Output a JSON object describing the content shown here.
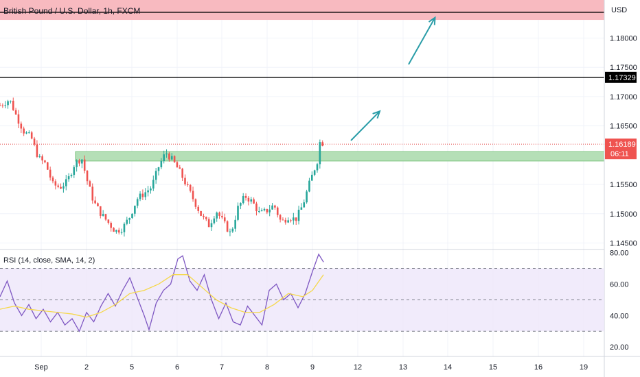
{
  "chart_data": {
    "type": "candlestick",
    "title": "British Pound / U.S. Dollar, 1h, FXCM",
    "currency": "USD",
    "y_ticks": [
      "1.18000",
      "1.17500",
      "1.17000",
      "1.16500",
      "1.15500",
      "1.15000",
      "1.14500"
    ],
    "ylim": [
      1.144,
      1.1865
    ],
    "x_ticks": [
      "Sep",
      "2",
      "5",
      "6",
      "7",
      "8",
      "9",
      "12",
      "13",
      "14",
      "15",
      "16",
      "19"
    ],
    "resistance_level": {
      "label": "1.17329",
      "value": 1.17329
    },
    "last_price": {
      "label": "1.16189",
      "value": 1.16189,
      "countdown": "06:11"
    },
    "price_points": [
      [
        0,
        1.1685
      ],
      [
        2,
        1.1695
      ],
      [
        3.5,
        1.1665
      ],
      [
        5,
        1.164
      ],
      [
        6.5,
        1.163
      ],
      [
        8,
        1.1595
      ],
      [
        9.5,
        1.1585
      ],
      [
        11,
        1.155
      ],
      [
        12.5,
        1.1545
      ],
      [
        14,
        1.1555
      ],
      [
        15.5,
        1.1585
      ],
      [
        17,
        1.1595
      ],
      [
        18,
        1.156
      ],
      [
        19.5,
        1.152
      ],
      [
        21,
        1.15
      ],
      [
        22.5,
        1.1485
      ],
      [
        24,
        1.147
      ],
      [
        25.5,
        1.1475
      ],
      [
        27,
        1.1495
      ],
      [
        28.5,
        1.1525
      ],
      [
        30,
        1.1535
      ],
      [
        31.5,
        1.1545
      ],
      [
        33,
        1.158
      ],
      [
        34.5,
        1.1605
      ],
      [
        36,
        1.159
      ],
      [
        37.5,
        1.157
      ],
      [
        39,
        1.1545
      ],
      [
        40.5,
        1.152
      ],
      [
        42,
        1.1495
      ],
      [
        43.5,
        1.148
      ],
      [
        45,
        1.1505
      ],
      [
        46.5,
        1.1485
      ],
      [
        48,
        1.1465
      ],
      [
        49.5,
        1.151
      ],
      [
        51,
        1.153
      ],
      [
        52.5,
        1.152
      ],
      [
        54,
        1.15
      ],
      [
        55.5,
        1.1505
      ],
      [
        57,
        1.1515
      ],
      [
        58.5,
        1.1485
      ],
      [
        60,
        1.1495
      ],
      [
        61.5,
        1.149
      ],
      [
        63,
        1.1515
      ],
      [
        64.5,
        1.1555
      ],
      [
        66,
        1.159
      ],
      [
        66.6,
        1.1625
      ],
      [
        67.3,
        1.1619
      ]
    ],
    "zones": [
      {
        "name": "resistance-zone",
        "from": 1.1831,
        "to": 1.1865,
        "color": "#f8bac0"
      },
      {
        "name": "support-zone",
        "from": 1.159,
        "to": 1.1606,
        "color": "#b5dfb7"
      }
    ],
    "projection": [
      [
        73,
        1.1625
      ],
      [
        79,
        1.1675
      ],
      [
        85,
        1.1755
      ],
      [
        90.5,
        1.1835
      ]
    ],
    "rsi": {
      "label": "RSI (14, close, SMA, 14, 2)",
      "ticks": [
        "80.00",
        "60.00",
        "40.00",
        "20.00"
      ],
      "ylim": [
        14,
        82
      ],
      "bands": [
        70,
        50,
        30
      ],
      "rsi_values": [
        [
          0,
          52
        ],
        [
          1.5,
          62
        ],
        [
          3,
          48
        ],
        [
          4.5,
          40
        ],
        [
          6,
          47
        ],
        [
          7.5,
          38
        ],
        [
          9,
          44
        ],
        [
          10.5,
          36
        ],
        [
          12,
          42
        ],
        [
          13.5,
          34
        ],
        [
          15,
          38
        ],
        [
          16.5,
          30
        ],
        [
          18,
          42
        ],
        [
          19.5,
          36
        ],
        [
          21,
          46
        ],
        [
          22.5,
          54
        ],
        [
          24,
          46
        ],
        [
          25.5,
          56
        ],
        [
          27,
          64
        ],
        [
          28.5,
          52
        ],
        [
          30,
          40
        ],
        [
          31,
          31
        ],
        [
          32.5,
          48
        ],
        [
          34,
          56
        ],
        [
          35.5,
          60
        ],
        [
          37,
          76
        ],
        [
          38,
          78
        ],
        [
          39.5,
          62
        ],
        [
          41,
          56
        ],
        [
          42.5,
          66
        ],
        [
          44,
          50
        ],
        [
          45.5,
          38
        ],
        [
          47,
          48
        ],
        [
          48.5,
          36
        ],
        [
          50,
          34
        ],
        [
          51.5,
          46
        ],
        [
          53,
          40
        ],
        [
          54.5,
          34
        ],
        [
          56,
          56
        ],
        [
          57.5,
          60
        ],
        [
          59,
          50
        ],
        [
          60.5,
          54
        ],
        [
          62,
          45
        ],
        [
          63.5,
          54
        ],
        [
          65,
          68
        ],
        [
          66.3,
          79
        ],
        [
          67.3,
          74
        ]
      ],
      "sma_values": [
        [
          0,
          44
        ],
        [
          3,
          46
        ],
        [
          6,
          44
        ],
        [
          9,
          43
        ],
        [
          12,
          42
        ],
        [
          15,
          41
        ],
        [
          18,
          39
        ],
        [
          21,
          42
        ],
        [
          24,
          47
        ],
        [
          27,
          54
        ],
        [
          30,
          56
        ],
        [
          33,
          60
        ],
        [
          36,
          66
        ],
        [
          39,
          66
        ],
        [
          42,
          58
        ],
        [
          45,
          50
        ],
        [
          48,
          45
        ],
        [
          51,
          42
        ],
        [
          54,
          42
        ],
        [
          57,
          47
        ],
        [
          60,
          54
        ],
        [
          63,
          52
        ],
        [
          65,
          56
        ],
        [
          67.3,
          66
        ]
      ]
    }
  }
}
